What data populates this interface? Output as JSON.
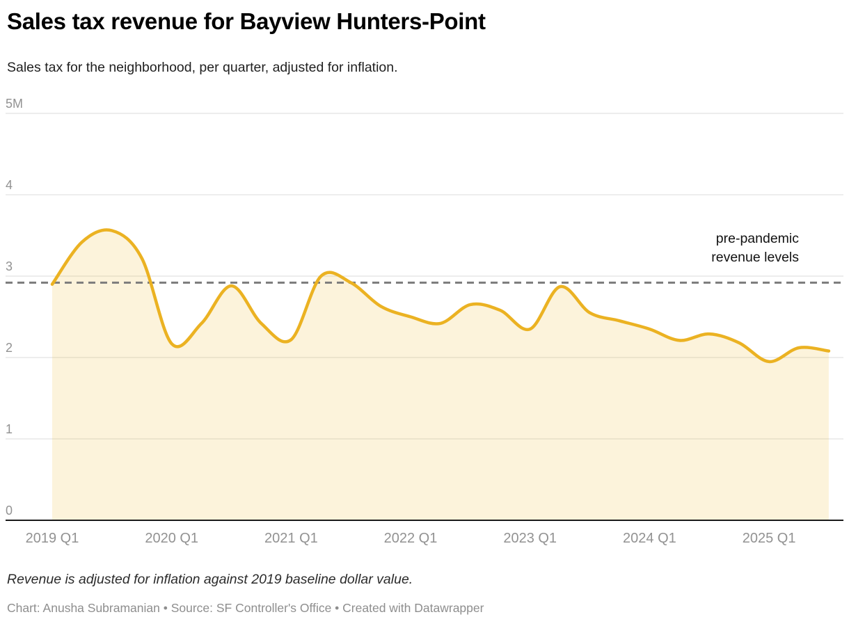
{
  "chart_data": {
    "type": "area",
    "title": "Sales tax revenue for Bayview Hunters-Point",
    "subtitle": "Sales tax for the neighborhood, per quarter, adjusted for inflation.",
    "x": [
      "2019 Q1",
      "2019 Q2",
      "2019 Q3",
      "2019 Q4",
      "2020 Q1",
      "2020 Q2",
      "2020 Q3",
      "2020 Q4",
      "2021 Q1",
      "2021 Q2",
      "2021 Q3",
      "2021 Q4",
      "2022 Q1",
      "2022 Q2",
      "2022 Q3",
      "2022 Q4",
      "2023 Q1",
      "2023 Q2",
      "2023 Q3",
      "2023 Q4",
      "2024 Q1",
      "2024 Q2",
      "2024 Q3",
      "2024 Q4",
      "2025 Q1",
      "2025 Q2",
      "2025 Q3"
    ],
    "values": [
      2.9,
      3.42,
      3.56,
      3.22,
      2.17,
      2.42,
      2.88,
      2.42,
      2.22,
      3.0,
      2.92,
      2.63,
      2.5,
      2.42,
      2.65,
      2.58,
      2.35,
      2.87,
      2.55,
      2.45,
      2.35,
      2.21,
      2.29,
      2.18,
      1.95,
      2.12,
      2.08
    ],
    "ylim": [
      0,
      5
    ],
    "y_ticks": [
      {
        "value": 0,
        "label": "0"
      },
      {
        "value": 1,
        "label": "1"
      },
      {
        "value": 2,
        "label": "2"
      },
      {
        "value": 3,
        "label": "3"
      },
      {
        "value": 4,
        "label": "4"
      },
      {
        "value": 5,
        "label": "5M"
      }
    ],
    "x_ticks": [
      "2019 Q1",
      "2020 Q1",
      "2021 Q1",
      "2022 Q1",
      "2023 Q1",
      "2024 Q1",
      "2025 Q1"
    ],
    "grid": true,
    "legend": "none",
    "reference_line": {
      "value": 2.92,
      "style": "dashed",
      "label": "pre-pandemic revenue levels"
    },
    "colors": {
      "line": "#EBB222",
      "fill": "rgba(235,178,34,0.16)",
      "grid": "#DBDBDB",
      "axis": "#1A1A1A",
      "reference": "#7C7C7C",
      "tick_text": "#929292"
    }
  },
  "footer": {
    "note": "Revenue is adjusted for inflation against 2019 baseline dollar value.",
    "byline": "Chart: Anusha Subramanian • Source: SF Controller's Office • Created with Datawrapper"
  }
}
